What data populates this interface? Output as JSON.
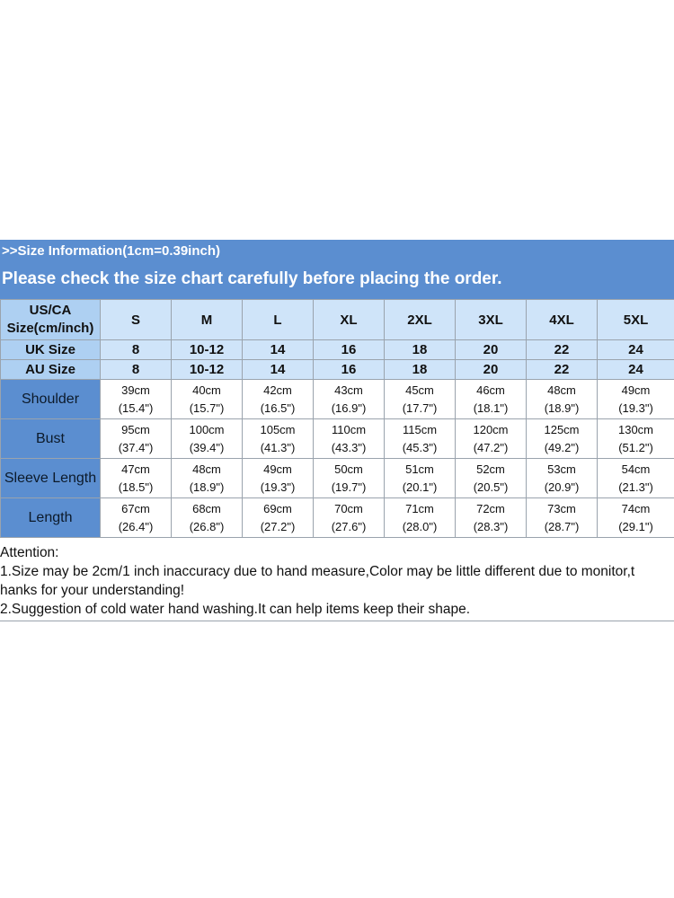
{
  "header": {
    "info": ">>Size Information(1cm=0.39inch)",
    "notice": "Please check the size chart carefully before placing the order."
  },
  "table": {
    "us_label": "US/CA Size(cm/inch)",
    "uk_label": "UK Size",
    "au_label": "AU Size",
    "sizes": [
      "S",
      "M",
      "L",
      "XL",
      "2XL",
      "3XL",
      "4XL",
      "5XL"
    ],
    "uk": [
      "8",
      "10-12",
      "14",
      "16",
      "18",
      "20",
      "22",
      "24"
    ],
    "au": [
      "8",
      "10-12",
      "14",
      "16",
      "18",
      "20",
      "22",
      "24"
    ],
    "rows": [
      {
        "label": "Shoulder",
        "cm": [
          "39cm",
          "40cm",
          "42cm",
          "43cm",
          "45cm",
          "46cm",
          "48cm",
          "49cm"
        ],
        "inch": [
          "(15.4\")",
          "(15.7\")",
          "(16.5\")",
          "(16.9\")",
          "(17.7\")",
          "(18.1\")",
          "(18.9\")",
          "(19.3\")"
        ]
      },
      {
        "label": "Bust",
        "cm": [
          "95cm",
          "100cm",
          "105cm",
          "110cm",
          "115cm",
          "120cm",
          "125cm",
          "130cm"
        ],
        "inch": [
          "(37.4\")",
          "(39.4\")",
          "(41.3\")",
          "(43.3\")",
          "(45.3\")",
          "(47.2\")",
          "(49.2\")",
          "(51.2\")"
        ]
      },
      {
        "label": "Sleeve Length",
        "cm": [
          "47cm",
          "48cm",
          "49cm",
          "50cm",
          "51cm",
          "52cm",
          "53cm",
          "54cm"
        ],
        "inch": [
          "(18.5\")",
          "(18.9\")",
          "(19.3\")",
          "(19.7\")",
          "(20.1\")",
          "(20.5\")",
          "(20.9\")",
          "(21.3\")"
        ]
      },
      {
        "label": "Length",
        "cm": [
          "67cm",
          "68cm",
          "69cm",
          "70cm",
          "71cm",
          "72cm",
          "73cm",
          "74cm"
        ],
        "inch": [
          "(26.4\")",
          "(26.8\")",
          "(27.2\")",
          "(27.6\")",
          "(28.0\")",
          "(28.3\")",
          "(28.7\")",
          "(29.1\")"
        ]
      }
    ]
  },
  "notes": {
    "title": "Attention:",
    "line1a": "1.Size may be 2cm/1 inch inaccuracy due to hand measure,Color may be little different due to monitor,t",
    "line1b": "hanks for your understanding!",
    "line2": "2.Suggestion of cold water hand washing.It can help items keep their shape."
  },
  "colors": {
    "header_blue": "#5b8ed0",
    "label_light_blue": "#aed0f2",
    "size_pale_blue": "#cfe4f9"
  }
}
